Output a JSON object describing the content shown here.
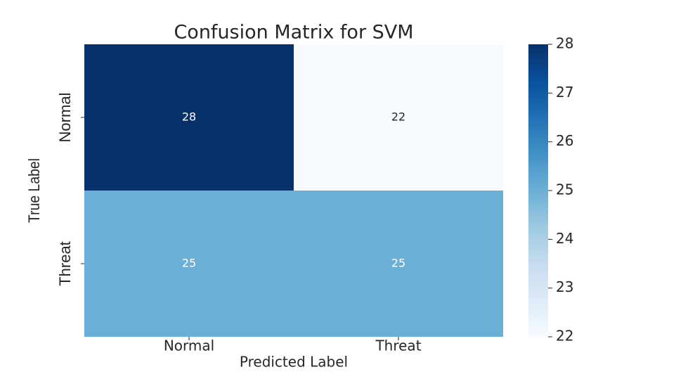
{
  "chart_data": {
    "type": "heatmap",
    "title": "Confusion Matrix for SVM",
    "xlabel": "Predicted Label",
    "ylabel": "True Label",
    "x_categories": [
      "Normal",
      "Threat"
    ],
    "y_categories": [
      "Normal",
      "Threat"
    ],
    "values": [
      [
        28,
        22
      ],
      [
        25,
        25
      ]
    ],
    "colormap": [
      "#f7fbff",
      "#deebf7",
      "#c6dbef",
      "#9ecae1",
      "#6baed6",
      "#4292c6",
      "#2171b5",
      "#08519c",
      "#08306b"
    ],
    "clim": [
      22,
      28
    ],
    "cticks": [
      22,
      23,
      24,
      25,
      26,
      27,
      28
    ]
  }
}
